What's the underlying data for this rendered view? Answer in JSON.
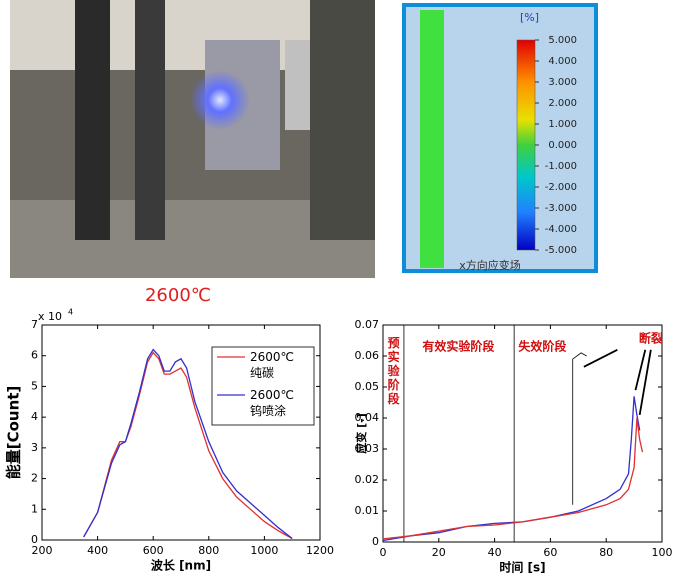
{
  "photo_caption": "2600℃",
  "strain_field": {
    "unit": "[%]",
    "label": "x方向应变场",
    "colorbar_lim": [
      -5,
      5
    ],
    "colorbar_ticks": [
      {
        "value": 5,
        "label": "5.000"
      },
      {
        "value": 4,
        "label": "4.000"
      },
      {
        "value": 3,
        "label": "3.000"
      },
      {
        "value": 2,
        "label": "2.000"
      },
      {
        "value": 1,
        "label": "1.000"
      },
      {
        "value": 0,
        "label": "0.000"
      },
      {
        "value": -1,
        "label": "-1.000"
      },
      {
        "value": -2,
        "label": "-2.000"
      },
      {
        "value": -3,
        "label": "-3.000"
      },
      {
        "value": -4,
        "label": "-4.000"
      },
      {
        "value": -5,
        "label": "-5.000"
      }
    ]
  },
  "chart_data": [
    {
      "type": "line",
      "xlabel": "波长 [nm]",
      "ylabel": "能量[Count]",
      "y_scale_base": "x 10",
      "y_scale_exponent": "4",
      "xlim": [
        200,
        1200
      ],
      "xticks": [
        200,
        400,
        600,
        800,
        1000,
        1200
      ],
      "ylim": [
        0,
        7
      ],
      "yticks": [
        0,
        1,
        2,
        3,
        4,
        5,
        6,
        7
      ],
      "legend": "upper right",
      "x": [
        350,
        400,
        450,
        480,
        500,
        520,
        550,
        580,
        600,
        620,
        640,
        660,
        680,
        700,
        720,
        750,
        800,
        850,
        900,
        950,
        1000,
        1050,
        1100
      ],
      "series": [
        {
          "name": "2600℃\n纯碳",
          "color": "#e03030",
          "values": [
            0.1,
            0.9,
            2.6,
            3.2,
            3.2,
            3.7,
            4.7,
            5.8,
            6.1,
            5.9,
            5.4,
            5.4,
            5.5,
            5.6,
            5.3,
            4.3,
            2.9,
            2.0,
            1.4,
            1.0,
            0.6,
            0.3,
            0.05
          ]
        },
        {
          "name": "2600℃\n钨喷涂",
          "color": "#3030d0",
          "values": [
            0.1,
            0.9,
            2.5,
            3.1,
            3.2,
            3.8,
            4.8,
            5.9,
            6.2,
            6.0,
            5.5,
            5.5,
            5.8,
            5.9,
            5.6,
            4.5,
            3.2,
            2.2,
            1.6,
            1.2,
            0.8,
            0.4,
            0.05
          ]
        }
      ]
    },
    {
      "type": "line",
      "xlabel": "时间 [s]",
      "ylabel": "应变 [-]",
      "xlim": [
        0,
        100
      ],
      "xticks": [
        0,
        20,
        40,
        60,
        80,
        100
      ],
      "ylim": [
        0,
        0.07
      ],
      "yticks": [
        0,
        0.01,
        0.02,
        0.03,
        0.04,
        0.05,
        0.06,
        0.07
      ],
      "stage_boundaries": [
        7.5,
        47
      ],
      "annotations": [
        "预实验阶段",
        "有效实验阶段",
        "失效阶段",
        "断裂"
      ],
      "series": [
        {
          "color": "#3030d0",
          "x": [
            0,
            10,
            20,
            30,
            40,
            50,
            60,
            70,
            80,
            85,
            88,
            89,
            90,
            91,
            92
          ],
          "values": [
            0.0005,
            0.002,
            0.003,
            0.005,
            0.006,
            0.0065,
            0.008,
            0.01,
            0.014,
            0.017,
            0.022,
            0.033,
            0.047,
            0.041,
            0.036
          ]
        },
        {
          "color": "#e03030",
          "x": [
            0,
            10,
            20,
            30,
            40,
            50,
            60,
            70,
            80,
            85,
            88,
            90,
            91,
            92,
            93
          ],
          "values": [
            0.001,
            0.002,
            0.0035,
            0.005,
            0.0055,
            0.0065,
            0.008,
            0.0095,
            0.012,
            0.014,
            0.017,
            0.024,
            0.04,
            0.033,
            0.029
          ]
        }
      ]
    }
  ]
}
